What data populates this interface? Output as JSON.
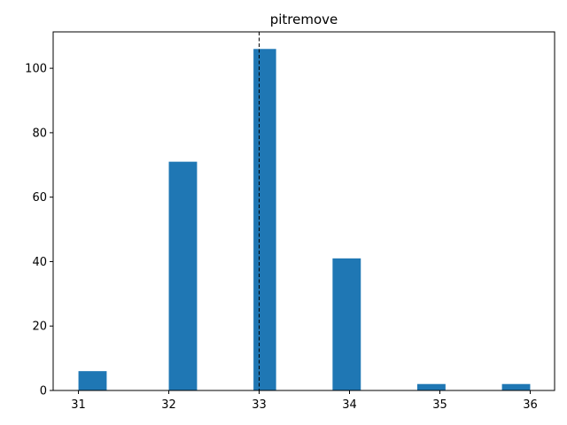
{
  "chart_data": {
    "type": "bar",
    "title": "pitremove",
    "xlabel": "",
    "ylabel": "",
    "bars": [
      {
        "x_start": 31.0,
        "x_end": 31.3125,
        "value": 6
      },
      {
        "x_start": 32.0,
        "x_end": 32.3125,
        "value": 71
      },
      {
        "x_start": 32.9375,
        "x_end": 33.1875,
        "value": 106
      },
      {
        "x_start": 33.8125,
        "x_end": 34.125,
        "value": 41
      },
      {
        "x_start": 34.75,
        "x_end": 35.0625,
        "value": 2
      },
      {
        "x_start": 35.6875,
        "x_end": 36.0,
        "value": 2
      }
    ],
    "xlim": [
      30.72,
      36.27
    ],
    "ylim": [
      0,
      111.3
    ],
    "x_ticks": [
      31,
      32,
      33,
      34,
      35,
      36
    ],
    "y_ticks": [
      0,
      20,
      40,
      60,
      80,
      100
    ],
    "reference_line": {
      "x": 33,
      "style": "dashed",
      "color": "#000000"
    },
    "bar_color": "#1f77b4",
    "grid": false,
    "legend": "none"
  }
}
